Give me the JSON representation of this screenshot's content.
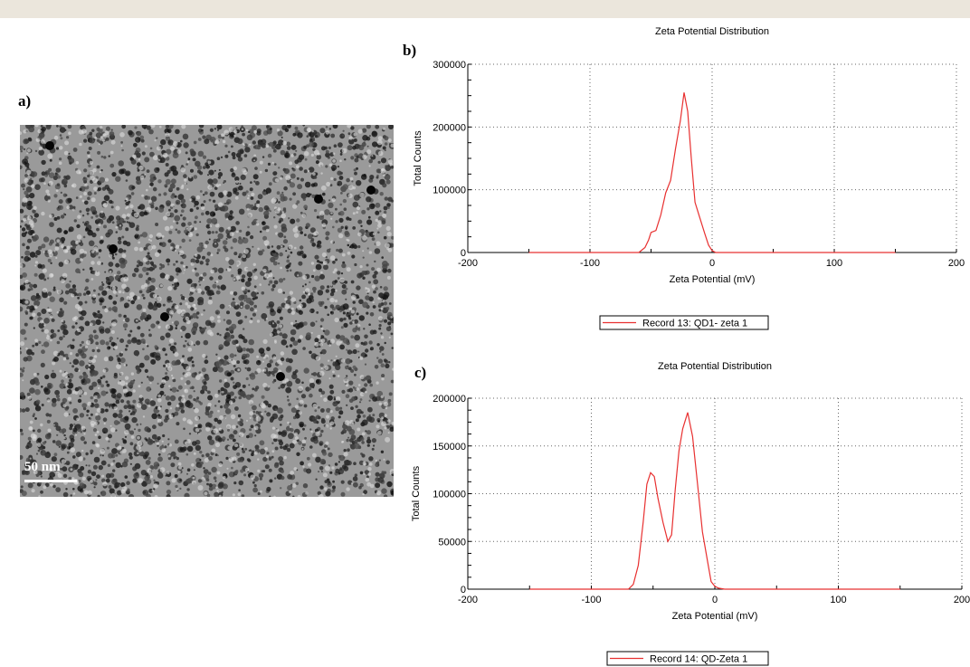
{
  "figure": {
    "panel_labels": {
      "a": "a)",
      "b": "b)",
      "c": "c)"
    },
    "tem_image": {
      "scale_text": "50 nm"
    }
  },
  "chart_data": [
    {
      "type": "line",
      "title": "Zeta Potential Distribution",
      "xlabel": "Zeta Potential (mV)",
      "ylabel": "Total Counts",
      "xlim": [
        -200,
        200
      ],
      "ylim": [
        0,
        300000
      ],
      "xticks": [
        -200,
        -100,
        0,
        100,
        200
      ],
      "yticks": [
        0,
        100000,
        200000,
        300000
      ],
      "grid": true,
      "legend_position": "bottom-center",
      "series": [
        {
          "name": "Record 13: QD1- zeta 1",
          "color": "#e83030",
          "x": [
            -150,
            -60,
            -55,
            -52,
            -50,
            -46,
            -42,
            -38,
            -34,
            -30,
            -26,
            -23,
            -20,
            -17,
            -14,
            -10,
            -6,
            -3,
            0,
            3,
            150
          ],
          "y": [
            0,
            0,
            8000,
            20000,
            32000,
            35000,
            60000,
            95000,
            115000,
            165000,
            210000,
            255000,
            225000,
            150000,
            80000,
            55000,
            30000,
            12000,
            3000,
            0,
            0
          ]
        }
      ]
    },
    {
      "type": "line",
      "title": "Zeta Potential Distribution",
      "xlabel": "Zeta Potential (mV)",
      "ylabel": "Total Counts",
      "xlim": [
        -200,
        200
      ],
      "ylim": [
        0,
        200000
      ],
      "xticks": [
        -200,
        -100,
        0,
        100,
        200
      ],
      "yticks": [
        0,
        50000,
        100000,
        150000,
        200000
      ],
      "grid": true,
      "legend_position": "bottom-center",
      "series": [
        {
          "name": "Record 14: QD-Zeta 1",
          "color": "#e83030",
          "x": [
            -150,
            -70,
            -66,
            -62,
            -58,
            -55,
            -52,
            -49,
            -46,
            -42,
            -38,
            -35,
            -32,
            -29,
            -26,
            -22,
            -18,
            -14,
            -10,
            -6,
            -3,
            0,
            3,
            8,
            150
          ],
          "y": [
            0,
            0,
            5000,
            25000,
            70000,
            110000,
            122000,
            118000,
            95000,
            70000,
            50000,
            57000,
            105000,
            145000,
            168000,
            185000,
            160000,
            110000,
            60000,
            30000,
            8000,
            3000,
            1000,
            0,
            0
          ]
        }
      ]
    }
  ]
}
